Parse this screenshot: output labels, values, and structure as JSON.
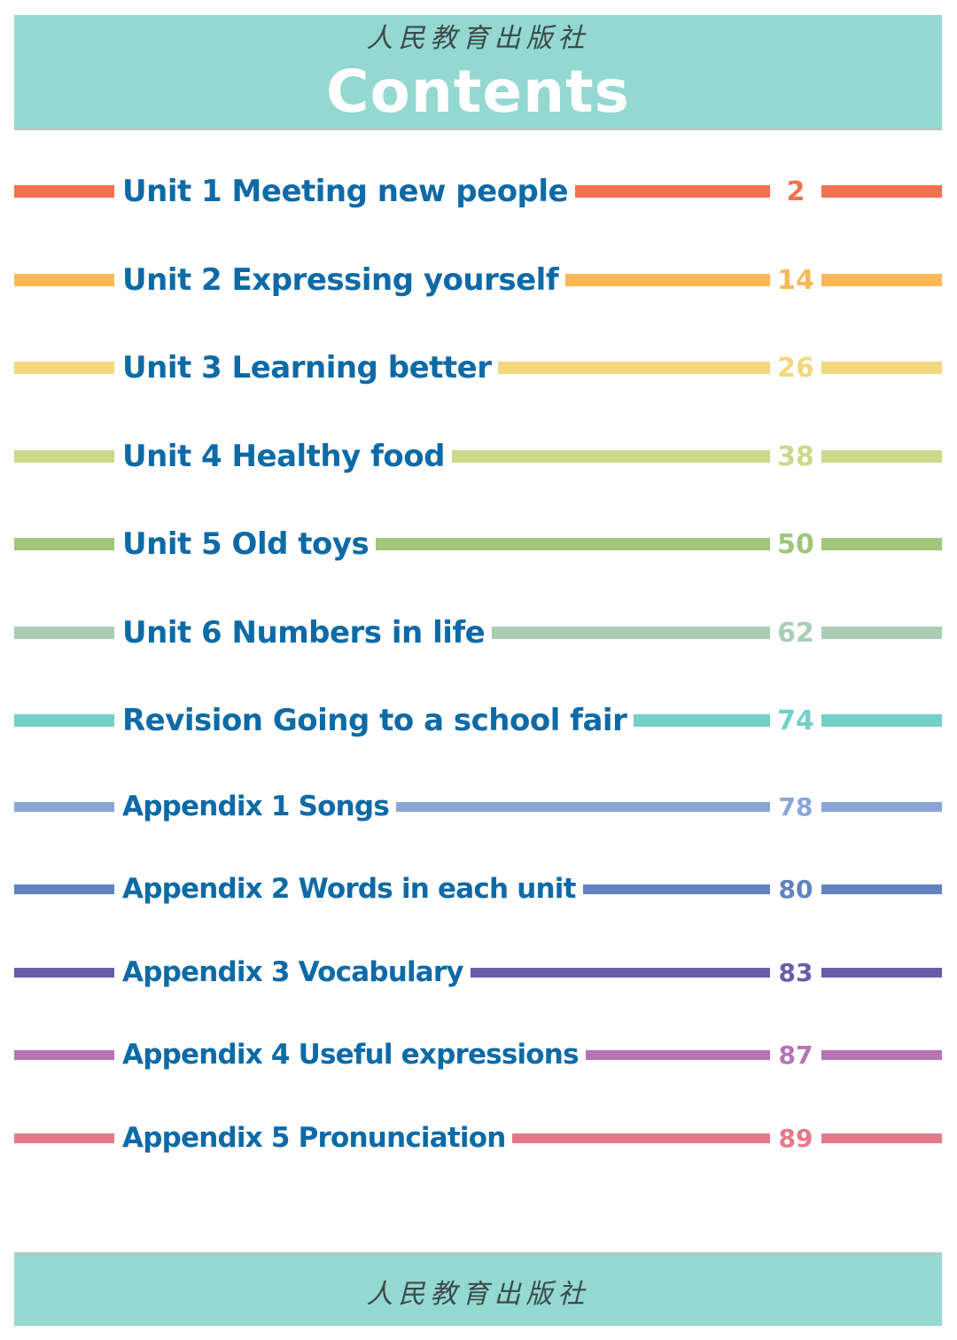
{
  "header": {
    "publisher": "人民教育出版社",
    "title": "Contents"
  },
  "toc": [
    {
      "label": "Unit 1  Meeting new people",
      "page": "2",
      "color": "#f2714f"
    },
    {
      "label": "Unit 2  Expressing yourself",
      "page": "14",
      "color": "#fcb858"
    },
    {
      "label": "Unit 3  Learning better",
      "page": "26",
      "color": "#f4d77d"
    },
    {
      "label": "Unit 4  Healthy food",
      "page": "38",
      "color": "#cdd88a"
    },
    {
      "label": "Unit 5  Old toys",
      "page": "50",
      "color": "#9fc67a"
    },
    {
      "label": "Unit 6  Numbers in life",
      "page": "62",
      "color": "#a9ceb5"
    },
    {
      "label": "Revision  Going to a school fair",
      "page": "74",
      "color": "#74cfc9"
    },
    {
      "label": "Appendix 1  Songs",
      "page": "78",
      "color": "#8aa6d9"
    },
    {
      "label": "Appendix 2  Words in each unit",
      "page": "80",
      "color": "#6282c0"
    },
    {
      "label": "Appendix 3  Vocabulary",
      "page": "83",
      "color": "#6a5ca8"
    },
    {
      "label": "Appendix 4  Useful expressions",
      "page": "87",
      "color": "#b673b6"
    },
    {
      "label": "Appendix 5  Pronunciation",
      "page": "89",
      "color": "#e6788a"
    }
  ],
  "footer": {
    "publisher": "人民教育出版社"
  }
}
